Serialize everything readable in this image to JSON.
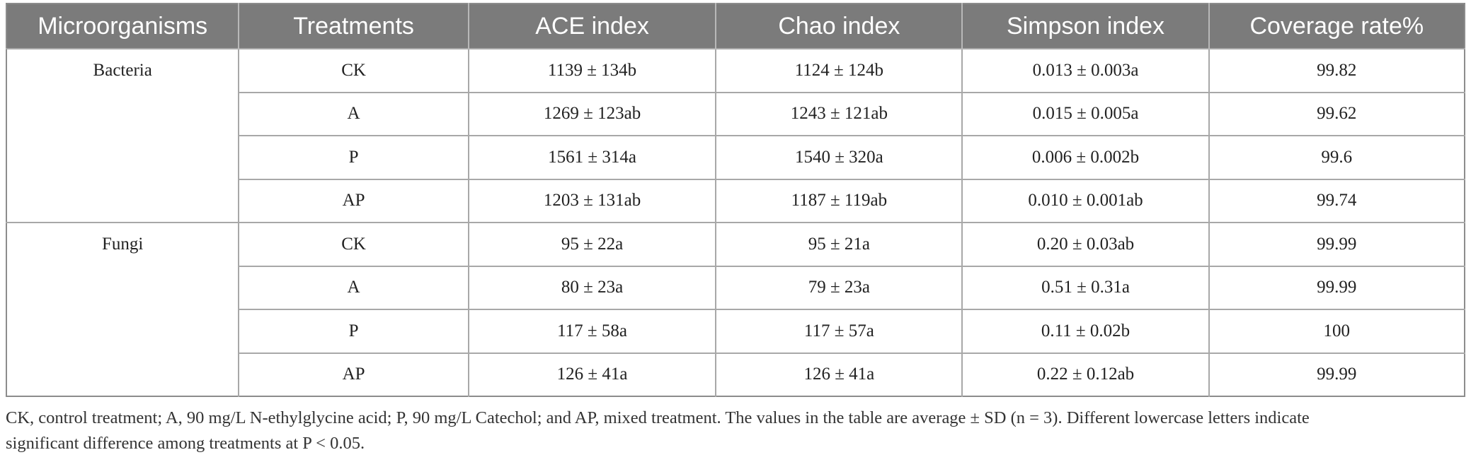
{
  "table": {
    "headers": [
      "Microorganisms",
      "Treatments",
      "ACE index",
      "Chao index",
      "Simpson index",
      "Coverage rate%"
    ],
    "groups": [
      {
        "name": "Bacteria",
        "rows": [
          {
            "treatment": "CK",
            "ace": "1139 ± 134b",
            "chao": "1124 ± 124b",
            "simpson": "0.013 ± 0.003a",
            "coverage": "99.82"
          },
          {
            "treatment": "A",
            "ace": "1269 ± 123ab",
            "chao": "1243 ± 121ab",
            "simpson": "0.015 ± 0.005a",
            "coverage": "99.62"
          },
          {
            "treatment": "P",
            "ace": "1561 ± 314a",
            "chao": "1540 ± 320a",
            "simpson": "0.006 ± 0.002b",
            "coverage": "99.6"
          },
          {
            "treatment": "AP",
            "ace": "1203 ± 131ab",
            "chao": "1187 ± 119ab",
            "simpson": "0.010 ± 0.001ab",
            "coverage": "99.74"
          }
        ]
      },
      {
        "name": "Fungi",
        "rows": [
          {
            "treatment": "CK",
            "ace": "95 ± 22a",
            "chao": "95 ± 21a",
            "simpson": "0.20 ± 0.03ab",
            "coverage": "99.99"
          },
          {
            "treatment": "A",
            "ace": "80 ± 23a",
            "chao": "79 ± 23a",
            "simpson": "0.51 ± 0.31a",
            "coverage": "99.99"
          },
          {
            "treatment": "P",
            "ace": "117 ± 58a",
            "chao": "117 ± 57a",
            "simpson": "0.11 ± 0.02b",
            "coverage": "100"
          },
          {
            "treatment": "AP",
            "ace": "126 ± 41a",
            "chao": "126 ± 41a",
            "simpson": "0.22 ± 0.12ab",
            "coverage": "99.99"
          }
        ]
      }
    ]
  },
  "caption": {
    "line1": "CK, control treatment; A, 90 mg/L N-ethylglycine acid; P, 90 mg/L Catechol; and AP, mixed treatment. The values in the table are average ± SD (n = 3). Different lowercase letters indicate",
    "line2": "significant difference among treatments at P < 0.05."
  }
}
